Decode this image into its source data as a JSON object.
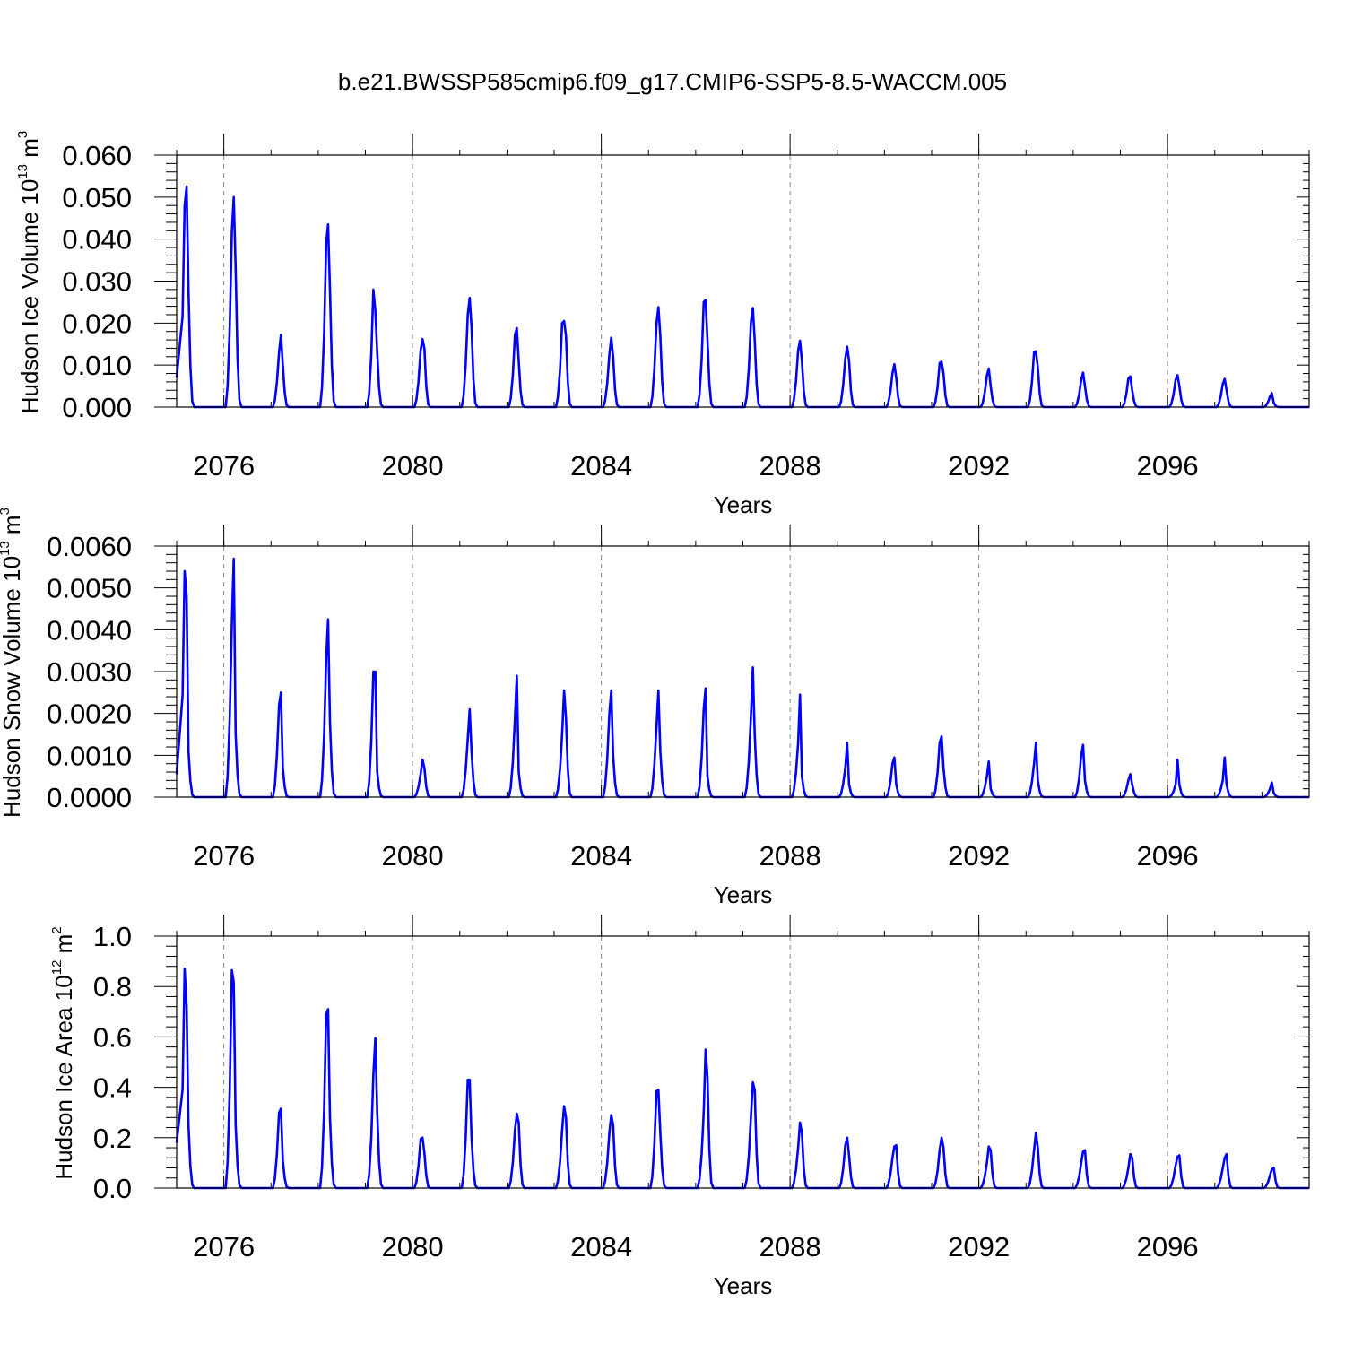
{
  "page": {
    "title": "b.e21.BWSSP585cmip6.f09_g17.CMIP6-SSP5-8.5-WACCM.005"
  },
  "colors": {
    "series": "#0000ff",
    "grid": "#888888"
  },
  "chart_data": [
    {
      "type": "line",
      "ylabel_main": "Hudson Ice Volume 10",
      "ylabel_exp": "13",
      "ylabel_unit": " m",
      "ylabel_unit_exp": "3",
      "xlabel": "Years",
      "xlim": [
        2075.0,
        2099.0
      ],
      "ylim": [
        0.0,
        0.06
      ],
      "yticks": [
        "0.000",
        "0.010",
        "0.020",
        "0.030",
        "0.040",
        "0.050",
        "0.060"
      ],
      "xticks": [
        "2076",
        "2080",
        "2084",
        "2088",
        "2092",
        "2096"
      ],
      "grid": "vertical dashed at x ticks",
      "peaks": [
        [
          0.048,
          0.0525,
          0.028
        ],
        [
          0.042,
          0.05,
          0.033
        ],
        [
          0.013,
          0.0172,
          0.01
        ],
        [
          0.039,
          0.0435,
          0.028
        ],
        [
          0.028,
          0.023,
          0.013
        ],
        [
          0.0135,
          0.0162,
          0.014
        ],
        [
          0.022,
          0.026,
          0.019
        ],
        [
          0.0172,
          0.0188,
          0.011
        ],
        [
          0.02,
          0.0205,
          0.017
        ],
        [
          0.0125,
          0.0165,
          0.012
        ],
        [
          0.02,
          0.0238,
          0.017
        ],
        [
          0.025,
          0.0255,
          0.016
        ],
        [
          0.02,
          0.0236,
          0.016
        ],
        [
          0.0135,
          0.0158,
          0.011
        ],
        [
          0.0115,
          0.0144,
          0.011
        ],
        [
          0.008,
          0.0102,
          0.007
        ],
        [
          0.0105,
          0.0108,
          0.008
        ],
        [
          0.0075,
          0.0092,
          0.005
        ],
        [
          0.013,
          0.0133,
          0.0095
        ],
        [
          0.0065,
          0.0082,
          0.005
        ],
        [
          0.0068,
          0.0073,
          0.004
        ],
        [
          0.0065,
          0.0076,
          0.005
        ],
        [
          0.0055,
          0.0067,
          0.004
        ],
        [
          0.0025,
          0.0033,
          0.001
        ]
      ]
    },
    {
      "type": "line",
      "ylabel_main": "Hudson Snow Volume 10",
      "ylabel_exp": "13",
      "ylabel_unit": " m",
      "ylabel_unit_exp": "3",
      "xlabel": "Years",
      "xlim": [
        2075.0,
        2099.0
      ],
      "ylim": [
        0.0,
        0.006
      ],
      "yticks": [
        "0.0000",
        "0.0010",
        "0.0020",
        "0.0030",
        "0.0040",
        "0.0050",
        "0.0060"
      ],
      "xticks": [
        "2076",
        "2080",
        "2084",
        "2088",
        "2092",
        "2096"
      ],
      "grid": "vertical dashed at x ticks",
      "peaks": [
        [
          0.0054,
          0.0048,
          0.0011
        ],
        [
          0.0042,
          0.0057,
          0.0015
        ],
        [
          0.0022,
          0.0025,
          0.0007
        ],
        [
          0.0033,
          0.00425,
          0.0018
        ],
        [
          0.003,
          0.003,
          0.0006
        ],
        [
          0.00055,
          0.0009,
          0.0007
        ],
        [
          0.0014,
          0.0021,
          0.0011
        ],
        [
          0.0019,
          0.0029,
          0.0006
        ],
        [
          0.0015,
          0.00255,
          0.0019
        ],
        [
          0.002,
          0.00255,
          0.001
        ],
        [
          0.0017,
          0.00255,
          0.0011
        ],
        [
          0.0021,
          0.0026,
          0.0005
        ],
        [
          0.0019,
          0.0031,
          0.0015
        ],
        [
          0.0013,
          0.00245,
          0.0005
        ],
        [
          0.0007,
          0.0013,
          0.0003
        ],
        [
          0.0008,
          0.00095,
          0.0003
        ],
        [
          0.0013,
          0.00145,
          0.0007
        ],
        [
          0.0005,
          0.00085,
          0.0002
        ],
        [
          0.0008,
          0.0013,
          0.0004
        ],
        [
          0.001,
          0.00125,
          0.0004
        ],
        [
          0.0004,
          0.00055,
          0.0003
        ],
        [
          0.0003,
          0.0009,
          0.0003
        ],
        [
          0.0004,
          0.00095,
          0.0003
        ],
        [
          0.0002,
          0.00035,
          0.0001
        ]
      ]
    },
    {
      "type": "line",
      "ylabel_main": "Hudson Ice Area 10",
      "ylabel_exp": "12",
      "ylabel_unit": " m",
      "ylabel_unit_exp": "2",
      "xlabel": "Years",
      "xlim": [
        2075.0,
        2099.0
      ],
      "ylim": [
        0.0,
        1.0
      ],
      "yticks": [
        "0.0",
        "0.2",
        "0.4",
        "0.6",
        "0.8",
        "1.0"
      ],
      "xticks": [
        "2076",
        "2080",
        "2084",
        "2088",
        "2092",
        "2096"
      ],
      "grid": "vertical dashed at x ticks",
      "peaks": [
        [
          0.87,
          0.72,
          0.25
        ],
        [
          0.865,
          0.815,
          0.25
        ],
        [
          0.3,
          0.315,
          0.11
        ],
        [
          0.69,
          0.71,
          0.28
        ],
        [
          0.45,
          0.595,
          0.3
        ],
        [
          0.195,
          0.2,
          0.14
        ],
        [
          0.43,
          0.43,
          0.2
        ],
        [
          0.23,
          0.295,
          0.26
        ],
        [
          0.23,
          0.325,
          0.28
        ],
        [
          0.22,
          0.29,
          0.25
        ],
        [
          0.385,
          0.39,
          0.22
        ],
        [
          0.3,
          0.55,
          0.44
        ],
        [
          0.28,
          0.42,
          0.39
        ],
        [
          0.16,
          0.26,
          0.22
        ],
        [
          0.17,
          0.2,
          0.13
        ],
        [
          0.12,
          0.165,
          0.17
        ],
        [
          0.15,
          0.2,
          0.16
        ],
        [
          0.1,
          0.165,
          0.15
        ],
        [
          0.15,
          0.22,
          0.16
        ],
        [
          0.1,
          0.145,
          0.15
        ],
        [
          0.08,
          0.135,
          0.12
        ],
        [
          0.09,
          0.125,
          0.13
        ],
        [
          0.08,
          0.12,
          0.135
        ],
        [
          0.05,
          0.075,
          0.08
        ]
      ]
    }
  ]
}
